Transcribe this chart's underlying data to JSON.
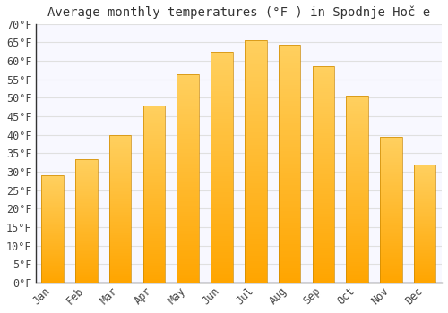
{
  "title": "Average monthly temperatures (°F ) in Spodnje Hoč e",
  "months": [
    "Jan",
    "Feb",
    "Mar",
    "Apr",
    "May",
    "Jun",
    "Jul",
    "Aug",
    "Sep",
    "Oct",
    "Nov",
    "Dec"
  ],
  "values": [
    29,
    33.5,
    40,
    48,
    56.5,
    62.5,
    65.5,
    64.5,
    58.5,
    50.5,
    39.5,
    32
  ],
  "bar_color_bottom": "#FFA500",
  "bar_color_top": "#FFD060",
  "background_color": "#FFFFFF",
  "plot_bg_color": "#F8F8FF",
  "grid_color": "#E0E0E0",
  "spine_color": "#333333",
  "tick_color": "#444444",
  "title_color": "#333333",
  "ylim": [
    0,
    70
  ],
  "yticks": [
    0,
    5,
    10,
    15,
    20,
    25,
    30,
    35,
    40,
    45,
    50,
    55,
    60,
    65,
    70
  ],
  "title_fontsize": 10,
  "tick_fontsize": 8.5,
  "font_family": "monospace"
}
